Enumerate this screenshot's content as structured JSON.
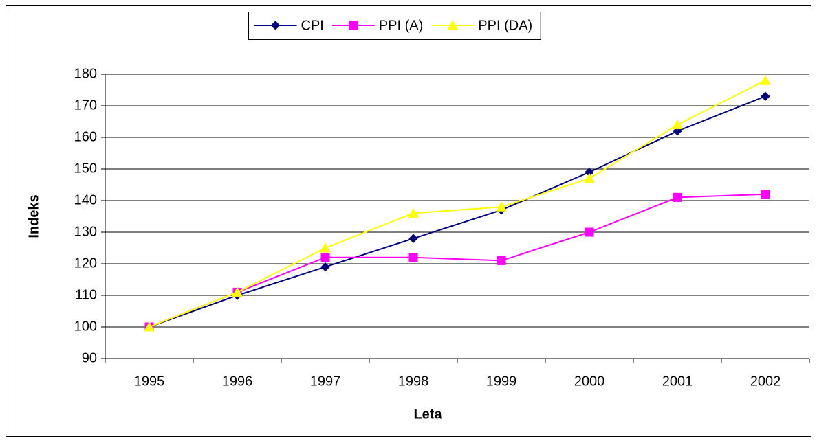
{
  "chart_data": {
    "type": "line",
    "categories": [
      "1995",
      "1996",
      "1997",
      "1998",
      "1999",
      "2000",
      "2001",
      "2002"
    ],
    "series": [
      {
        "name": "CPI",
        "color": "#000080",
        "marker": "diamond",
        "values": [
          100,
          110,
          119,
          128,
          137,
          149,
          162,
          173
        ]
      },
      {
        "name": "PPI (A)",
        "color": "#ff00ff",
        "marker": "square",
        "values": [
          100,
          111,
          122,
          122,
          121,
          130,
          141,
          142
        ]
      },
      {
        "name": "PPI (DA)",
        "color": "#ffff00",
        "marker": "triangle",
        "values": [
          100,
          111,
          125,
          136,
          138,
          147,
          164,
          178
        ]
      }
    ],
    "x_label": "Leta",
    "y_label": "Indeks",
    "ylim": [
      90,
      180
    ],
    "yticks": [
      90,
      100,
      110,
      120,
      130,
      140,
      150,
      160,
      170,
      180
    ],
    "grid": true,
    "legend": "top"
  }
}
